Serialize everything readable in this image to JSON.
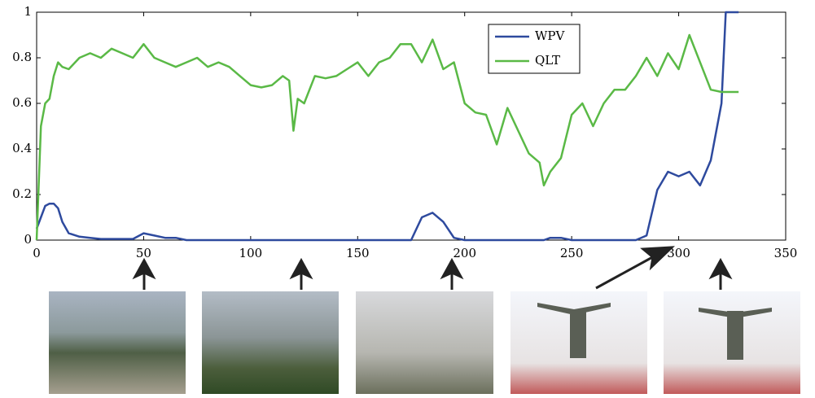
{
  "chart_data": {
    "type": "line",
    "x": [
      0,
      2,
      4,
      6,
      8,
      10,
      12,
      15,
      20,
      25,
      30,
      35,
      40,
      45,
      50,
      55,
      60,
      65,
      70,
      75,
      80,
      85,
      90,
      95,
      100,
      105,
      110,
      115,
      118,
      120,
      122,
      125,
      130,
      135,
      140,
      145,
      150,
      155,
      160,
      165,
      170,
      175,
      180,
      185,
      190,
      195,
      200,
      205,
      210,
      215,
      220,
      225,
      230,
      235,
      237,
      240,
      245,
      250,
      255,
      260,
      265,
      270,
      275,
      280,
      285,
      290,
      295,
      300,
      305,
      310,
      315,
      320,
      322,
      328
    ],
    "series": [
      {
        "name": "WPV",
        "color": "#2e4a9e",
        "values": [
          0.05,
          0.1,
          0.15,
          0.16,
          0.16,
          0.14,
          0.08,
          0.03,
          0.015,
          0.01,
          0.005,
          0.005,
          0.005,
          0.005,
          0.03,
          0.02,
          0.01,
          0.01,
          0,
          0,
          0,
          0,
          0,
          0,
          0,
          0,
          0,
          0,
          0,
          0,
          0,
          0,
          0,
          0,
          0,
          0,
          0,
          0,
          0,
          0,
          0,
          0,
          0.1,
          0.12,
          0.08,
          0.01,
          0,
          0,
          0,
          0,
          0,
          0,
          0,
          0,
          0,
          0.01,
          0.01,
          0,
          0,
          0,
          0,
          0,
          0,
          0,
          0.02,
          0.22,
          0.3,
          0.28,
          0.3,
          0.24,
          0.35,
          0.6,
          1,
          1
        ]
      },
      {
        "name": "QLT",
        "color": "#5ab946",
        "values": [
          0,
          0.5,
          0.6,
          0.62,
          0.72,
          0.78,
          0.76,
          0.75,
          0.8,
          0.82,
          0.8,
          0.84,
          0.82,
          0.8,
          0.86,
          0.8,
          0.78,
          0.76,
          0.78,
          0.8,
          0.76,
          0.78,
          0.76,
          0.72,
          0.68,
          0.67,
          0.68,
          0.72,
          0.7,
          0.48,
          0.62,
          0.6,
          0.72,
          0.71,
          0.72,
          0.75,
          0.78,
          0.72,
          0.78,
          0.8,
          0.86,
          0.86,
          0.78,
          0.88,
          0.75,
          0.78,
          0.6,
          0.56,
          0.55,
          0.42,
          0.58,
          0.48,
          0.38,
          0.34,
          0.24,
          0.3,
          0.36,
          0.55,
          0.6,
          0.5,
          0.6,
          0.66,
          0.66,
          0.72,
          0.8,
          0.72,
          0.82,
          0.75,
          0.9,
          0.78,
          0.66,
          0.65,
          0.65,
          0.65
        ]
      }
    ],
    "xlim": [
      0,
      350
    ],
    "xticks": [
      0,
      50,
      100,
      150,
      200,
      250,
      300,
      350
    ],
    "ylim": [
      0,
      1
    ],
    "yticks": [
      0,
      0.2,
      0.4,
      0.6,
      0.8,
      1
    ]
  }
}
